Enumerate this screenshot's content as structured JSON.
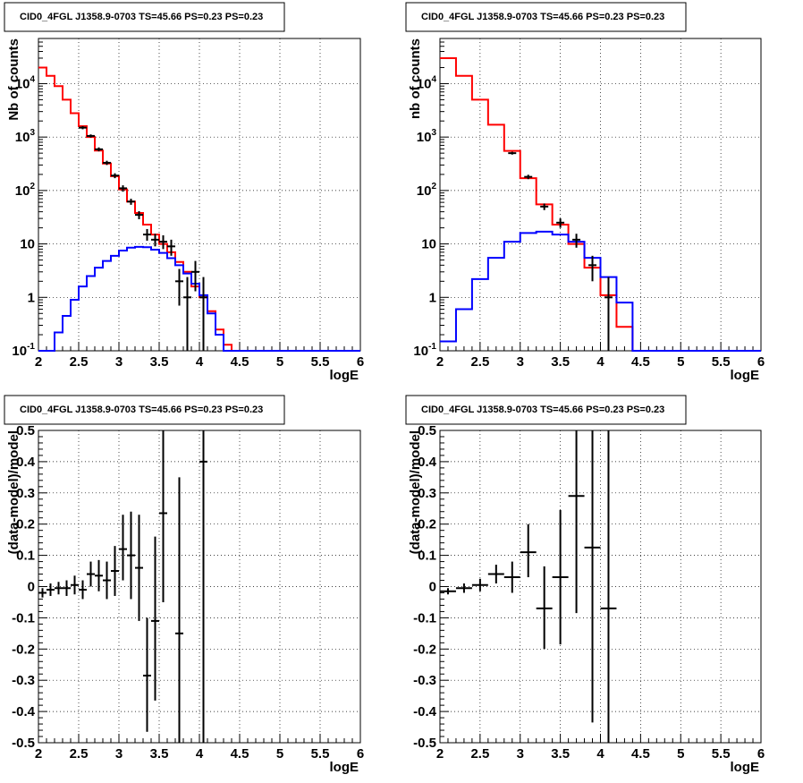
{
  "chart_data": [
    {
      "type": "line",
      "title": "CID0_4FGL J1358.9-0703 TS=45.66 PS=0.23 PS=0.23",
      "xlabel": "logE",
      "ylabel": "Nb of counts",
      "xlim": [
        2,
        6
      ],
      "ylim": [
        0.1,
        70000
      ],
      "yscale": "log",
      "grid": true,
      "xticks": [
        "2",
        "2.5",
        "3",
        "3.5",
        "4",
        "4.5",
        "5",
        "5.5",
        "6"
      ],
      "yticks": [
        "10^-1",
        "1",
        "10",
        "10^2",
        "10^3",
        "10^4"
      ],
      "bin_edges": [
        2.0,
        2.1,
        2.2,
        2.3,
        2.4,
        2.5,
        2.6,
        2.7,
        2.8,
        2.9,
        3.0,
        3.1,
        3.2,
        3.3,
        3.4,
        3.5,
        3.6,
        3.7,
        3.8,
        3.9,
        4.0,
        4.1,
        4.2,
        4.3,
        4.4,
        4.5,
        4.6,
        4.7,
        4.8,
        4.9,
        5.0,
        5.1,
        5.2,
        5.3,
        5.4,
        5.5,
        5.6,
        5.7,
        5.8,
        5.9,
        6.0
      ],
      "series": [
        {
          "color": "#ff0000",
          "values": [
            20000,
            14000,
            9000,
            5000,
            2800,
            1600,
            1000,
            560,
            320,
            185,
            105,
            62,
            38,
            23,
            15,
            10,
            7,
            4.6,
            3.0,
            1.6,
            1.0,
            0.55,
            0.25,
            0.13,
            0.1,
            0.1,
            0.1,
            0.1,
            0.1,
            0.1,
            0.1,
            0.1,
            0.1,
            0.1,
            0.1,
            0.1,
            0.1,
            0.1,
            0.1,
            0.1
          ]
        },
        {
          "color": "#0000ff",
          "values": [
            0.1,
            0.1,
            0.22,
            0.45,
            0.9,
            1.6,
            2.5,
            3.6,
            4.8,
            6.0,
            7.5,
            8.5,
            8.8,
            8.7,
            7.8,
            6.8,
            5.4,
            4.0,
            2.8,
            1.8,
            1.1,
            0.5,
            0.2,
            0.1,
            0.1,
            0.1,
            0.1,
            0.1,
            0.1,
            0.1,
            0.1,
            0.1,
            0.1,
            0.1,
            0.1,
            0.1,
            0.1,
            0.1,
            0.1,
            0.1
          ]
        }
      ],
      "points": [
        {
          "x": 2.55,
          "y": 1500,
          "lo": 1400,
          "hi": 1600
        },
        {
          "x": 2.65,
          "y": 1050,
          "lo": 980,
          "hi": 1120
        },
        {
          "x": 2.75,
          "y": 590,
          "lo": 540,
          "hi": 640
        },
        {
          "x": 2.85,
          "y": 330,
          "lo": 300,
          "hi": 360
        },
        {
          "x": 2.95,
          "y": 190,
          "lo": 170,
          "hi": 210
        },
        {
          "x": 3.05,
          "y": 110,
          "lo": 95,
          "hi": 125
        },
        {
          "x": 3.15,
          "y": 62,
          "lo": 54,
          "hi": 70
        },
        {
          "x": 3.25,
          "y": 35,
          "lo": 29,
          "hi": 41
        },
        {
          "x": 3.35,
          "y": 15,
          "lo": 11.5,
          "hi": 19
        },
        {
          "x": 3.45,
          "y": 12,
          "lo": 9,
          "hi": 15.5
        },
        {
          "x": 3.55,
          "y": 11,
          "lo": 8,
          "hi": 14.5
        },
        {
          "x": 3.65,
          "y": 9,
          "lo": 6,
          "hi": 12
        },
        {
          "x": 3.75,
          "y": 2,
          "lo": 0.7,
          "hi": 3.4
        },
        {
          "x": 3.85,
          "y": 1,
          "lo": 0.1,
          "hi": 2.4
        },
        {
          "x": 3.95,
          "y": 3,
          "lo": 1.3,
          "hi": 4.8
        },
        {
          "x": 4.05,
          "y": 1,
          "lo": 0.1,
          "hi": 2.4
        }
      ]
    },
    {
      "type": "line",
      "title": "CID0_4FGL J1358.9-0703 TS=45.66 PS=0.23 PS=0.23",
      "xlabel": "logE",
      "ylabel": "nb of counts",
      "xlim": [
        2,
        6
      ],
      "ylim": [
        0.1,
        70000
      ],
      "yscale": "log",
      "grid": true,
      "xticks": [
        "2",
        "2.5",
        "3",
        "3.5",
        "4",
        "4.5",
        "5",
        "5.5",
        "6"
      ],
      "yticks": [
        "10^-1",
        "1",
        "10",
        "10^2",
        "10^3",
        "10^4"
      ],
      "bin_edges": [
        2.0,
        2.2,
        2.4,
        2.6,
        2.8,
        3.0,
        3.2,
        3.4,
        3.6,
        3.8,
        4.0,
        4.2,
        4.4,
        4.6,
        4.8,
        5.0,
        5.2,
        5.4,
        5.6,
        5.8,
        6.0
      ],
      "series": [
        {
          "color": "#ff0000",
          "values": [
            30000,
            14000,
            5000,
            1700,
            550,
            170,
            55,
            23,
            10,
            3.6,
            1.1,
            0.28,
            0.1,
            0.1,
            0.1,
            0.1,
            0.1,
            0.1,
            0.1,
            0.1
          ]
        },
        {
          "color": "#0000ff",
          "values": [
            0.15,
            0.6,
            2.2,
            5.5,
            11,
            16,
            17,
            15,
            11,
            5.5,
            2.4,
            0.8,
            0.1,
            0.1,
            0.1,
            0.1,
            0.1,
            0.1,
            0.1,
            0.1
          ]
        }
      ],
      "points": [
        {
          "x": 2.9,
          "y": 500,
          "lo": 470,
          "hi": 530
        },
        {
          "x": 3.1,
          "y": 180,
          "lo": 163,
          "hi": 197
        },
        {
          "x": 3.3,
          "y": 50,
          "lo": 43,
          "hi": 57
        },
        {
          "x": 3.5,
          "y": 25,
          "lo": 20,
          "hi": 30
        },
        {
          "x": 3.7,
          "y": 12,
          "lo": 8.5,
          "hi": 15.5
        },
        {
          "x": 3.9,
          "y": 4,
          "lo": 2,
          "hi": 6
        },
        {
          "x": 4.1,
          "y": 1,
          "lo": 0.1,
          "hi": 2.4
        }
      ]
    },
    {
      "type": "scatter",
      "title": "CID0_4FGL J1358.9-0703 TS=45.66 PS=0.23 PS=0.23",
      "xlabel": "logE",
      "ylabel": "(data-model)/model",
      "xlim": [
        2,
        6
      ],
      "ylim": [
        -0.5,
        0.5
      ],
      "grid": true,
      "xticks": [
        "2",
        "2.5",
        "3",
        "3.5",
        "4",
        "4.5",
        "5",
        "5.5",
        "6"
      ],
      "yticks": [
        "-0.5",
        "-0.4",
        "-0.3",
        "-0.2",
        "-0.1",
        "0",
        "0.1",
        "0.2",
        "0.3",
        "0.4",
        "0.5"
      ],
      "xerr": 0.05,
      "points": [
        {
          "x": 2.05,
          "y": -0.02,
          "lo": -0.035,
          "hi": -0.005
        },
        {
          "x": 2.15,
          "y": -0.01,
          "lo": -0.03,
          "hi": 0.01
        },
        {
          "x": 2.25,
          "y": -0.005,
          "lo": -0.025,
          "hi": 0.015
        },
        {
          "x": 2.35,
          "y": -0.005,
          "lo": -0.03,
          "hi": 0.02
        },
        {
          "x": 2.45,
          "y": 0.005,
          "lo": -0.025,
          "hi": 0.035
        },
        {
          "x": 2.55,
          "y": -0.01,
          "lo": -0.04,
          "hi": 0.02
        },
        {
          "x": 2.65,
          "y": 0.04,
          "lo": 0.0,
          "hi": 0.08
        },
        {
          "x": 2.75,
          "y": 0.035,
          "lo": -0.015,
          "hi": 0.085
        },
        {
          "x": 2.85,
          "y": 0.02,
          "lo": -0.04,
          "hi": 0.08
        },
        {
          "x": 2.95,
          "y": 0.05,
          "lo": -0.03,
          "hi": 0.13
        },
        {
          "x": 3.05,
          "y": 0.12,
          "lo": 0.02,
          "hi": 0.23
        },
        {
          "x": 3.15,
          "y": 0.1,
          "lo": -0.04,
          "hi": 0.24
        },
        {
          "x": 3.25,
          "y": 0.06,
          "lo": -0.11,
          "hi": 0.23
        },
        {
          "x": 3.35,
          "y": -0.285,
          "lo": -0.465,
          "hi": -0.1
        },
        {
          "x": 3.45,
          "y": -0.11,
          "lo": -0.365,
          "hi": 0.16
        },
        {
          "x": 3.55,
          "y": 0.235,
          "lo": -0.05,
          "hi": 0.5
        },
        {
          "x": 3.75,
          "y": -0.15,
          "lo": -0.5,
          "hi": 0.35
        },
        {
          "x": 4.05,
          "y": 0.4,
          "lo": -0.5,
          "hi": 0.5
        }
      ]
    },
    {
      "type": "scatter",
      "title": "CID0_4FGL J1358.9-0703 TS=45.66 PS=0.23 PS=0.23",
      "xlabel": "logE",
      "ylabel": "(data-model)/model",
      "xlim": [
        2,
        6
      ],
      "ylim": [
        -0.5,
        0.5
      ],
      "grid": true,
      "xticks": [
        "2",
        "2.5",
        "3",
        "3.5",
        "4",
        "4.5",
        "5",
        "5.5",
        "6"
      ],
      "yticks": [
        "-0.5",
        "-0.4",
        "-0.3",
        "-0.2",
        "-0.1",
        "0",
        "0.1",
        "0.2",
        "0.3",
        "0.4",
        "0.5"
      ],
      "xerr": 0.1,
      "points": [
        {
          "x": 2.1,
          "y": -0.015,
          "lo": -0.025,
          "hi": -0.005
        },
        {
          "x": 2.3,
          "y": -0.005,
          "lo": -0.02,
          "hi": 0.01
        },
        {
          "x": 2.5,
          "y": 0.005,
          "lo": -0.015,
          "hi": 0.025
        },
        {
          "x": 2.7,
          "y": 0.04,
          "lo": 0.01,
          "hi": 0.07
        },
        {
          "x": 2.9,
          "y": 0.03,
          "lo": -0.02,
          "hi": 0.08
        },
        {
          "x": 3.1,
          "y": 0.11,
          "lo": 0.03,
          "hi": 0.2
        },
        {
          "x": 3.3,
          "y": -0.07,
          "lo": -0.2,
          "hi": 0.065
        },
        {
          "x": 3.5,
          "y": 0.03,
          "lo": -0.185,
          "hi": 0.245
        },
        {
          "x": 3.7,
          "y": 0.29,
          "lo": -0.085,
          "hi": 0.5
        },
        {
          "x": 3.9,
          "y": 0.125,
          "lo": -0.435,
          "hi": 0.5
        },
        {
          "x": 4.1,
          "y": -0.07,
          "lo": -0.5,
          "hi": 0.5
        }
      ]
    }
  ]
}
